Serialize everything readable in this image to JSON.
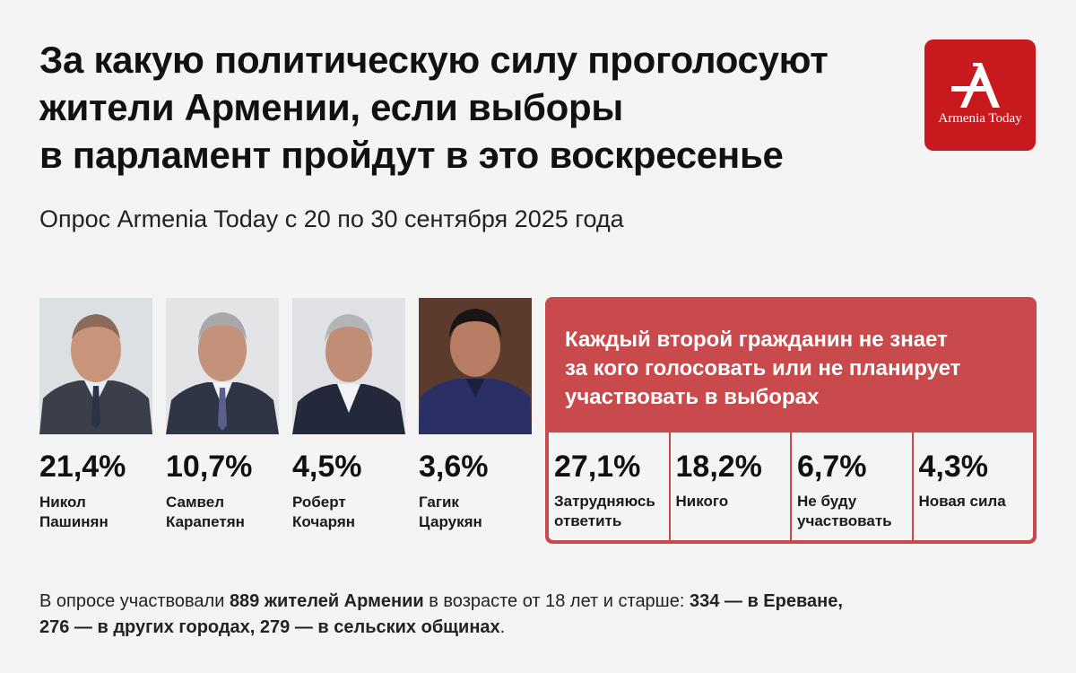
{
  "title_lines": [
    "За какую политическую силу проголосуют",
    "жители Армении, если выборы",
    "в парламент пройдут в это воскресенье"
  ],
  "subtitle": "Опрос Armenia Today с 20 по 30 сентября 2025 года",
  "logo": {
    "text": "Armenia Today",
    "bg_color": "#c8191f"
  },
  "callout": {
    "lines": [
      "Каждый второй гражданин не знает",
      "за кого голосовать или не планирует",
      "участвовать в выборах"
    ],
    "color": "#c94a4d"
  },
  "chart_data": {
    "type": "table",
    "unit": "%",
    "candidates": [
      {
        "value": 21.4,
        "value_label": "21,4%",
        "name_lines": [
          "Никол",
          "Пашинян"
        ]
      },
      {
        "value": 10.7,
        "value_label": "10,7%",
        "name_lines": [
          "Самвел",
          "Карапетян"
        ]
      },
      {
        "value": 4.5,
        "value_label": "4,5%",
        "name_lines": [
          "Роберт",
          "Кочарян"
        ]
      },
      {
        "value": 3.6,
        "value_label": "3,6%",
        "name_lines": [
          "Гагик",
          "Царукян"
        ]
      }
    ],
    "other_answers": [
      {
        "value": 27.1,
        "value_label": "27,1%",
        "label_lines": [
          "Затрудняюсь",
          "ответить"
        ]
      },
      {
        "value": 18.2,
        "value_label": "18,2%",
        "label_lines": [
          "Никого"
        ]
      },
      {
        "value": 6.7,
        "value_label": "6,7%",
        "label_lines": [
          "Не буду",
          "участвовать"
        ]
      },
      {
        "value": 4.3,
        "value_label": "4,3%",
        "label_lines": [
          "Новая сила"
        ]
      }
    ]
  },
  "footer": {
    "line1_parts": [
      {
        "text": "В опросе участвовали ",
        "bold": false
      },
      {
        "text": "889 жителей Армении",
        "bold": true
      },
      {
        "text": " в возрасте от 18 лет и старше: ",
        "bold": false
      },
      {
        "text": "334 — в Ереване,",
        "bold": true
      }
    ],
    "line2_parts": [
      {
        "text": "276 — в других городах, 279 — в сельских общинах",
        "bold": true
      },
      {
        "text": ".",
        "bold": false
      }
    ]
  }
}
